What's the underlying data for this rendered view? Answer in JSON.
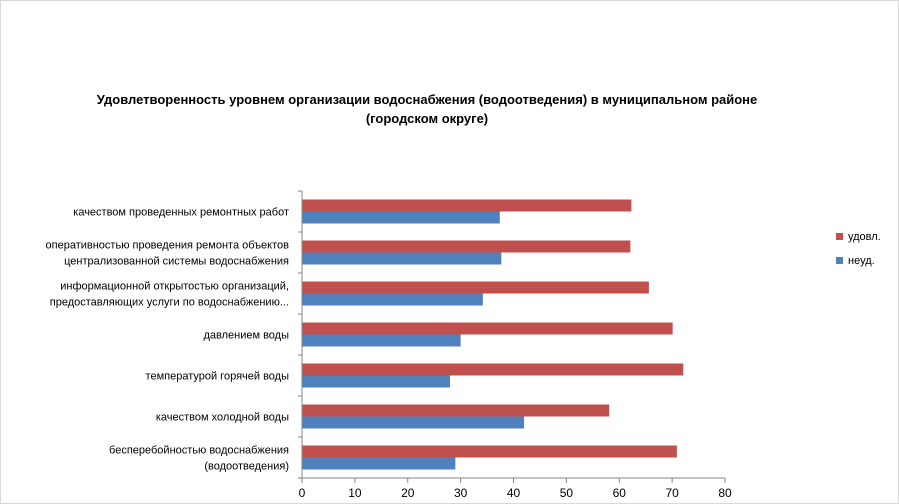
{
  "chart_data": {
    "type": "bar",
    "orientation": "horizontal",
    "title_lines": [
      "Удовлетворенность уровнем организации водоснабжения (водоотведения) в муниципальном районе",
      "(городском округе)"
    ],
    "categories": [
      [
        "качеством  проведенных  ремонтных работ"
      ],
      [
        "оперативностью  проведения  ремонта объектов",
        "централизованной системы водоснабжения"
      ],
      [
        "информационной открытостью организаций,",
        "предоставляющих услуги по водоснабжению..."
      ],
      [
        "давлением  воды"
      ],
      [
        "температурой  горячей воды"
      ],
      [
        "качеством  холодной воды"
      ],
      [
        "бесперебойностью  водоснабжения",
        "(водоотведения)"
      ]
    ],
    "series": [
      {
        "name": "удовл.",
        "color": "#c0504d",
        "values": [
          62.3,
          62.1,
          65.6,
          70.1,
          72.1,
          58.1,
          70.9
        ]
      },
      {
        "name": "неуд.",
        "color": "#4f81bd",
        "values": [
          37.4,
          37.7,
          34.2,
          30.0,
          28.0,
          42.0,
          29.0
        ]
      }
    ],
    "xlim": [
      0,
      80
    ],
    "xticks": [
      "0",
      "10",
      "20",
      "30",
      "40",
      "50",
      "60",
      "70",
      "80"
    ],
    "grid": false,
    "legend_position": "right"
  }
}
